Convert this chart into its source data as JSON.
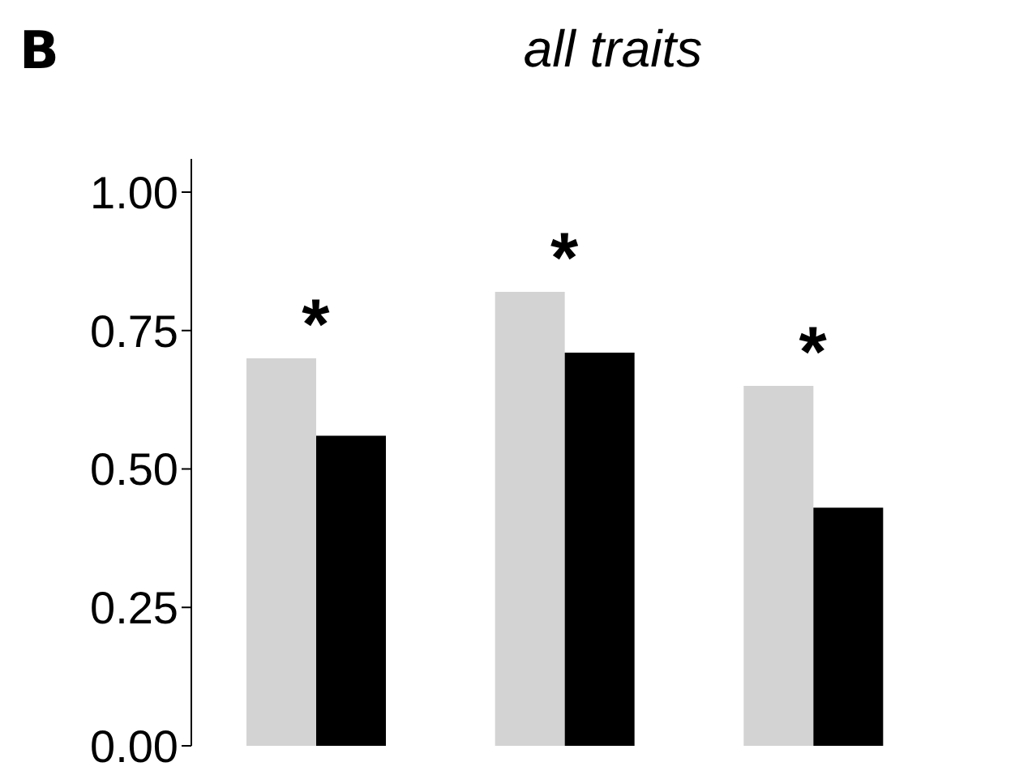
{
  "chart_data": {
    "type": "bar",
    "title": "all traits",
    "categories": [
      null,
      null,
      null
    ],
    "series": [
      {
        "color": "#d3d3d3",
        "values": [
          0.7,
          0.82,
          0.65
        ]
      },
      {
        "color": "#000000",
        "values": [
          0.56,
          0.71,
          0.43
        ]
      }
    ],
    "ylim": [
      0,
      1.06
    ],
    "yticks": [
      {
        "value": 0,
        "label": "0.00"
      },
      {
        "value": 0.25,
        "label": "0.25"
      },
      {
        "value": 0.5,
        "label": "0.50"
      },
      {
        "value": 0.75,
        "label": "0.75"
      },
      {
        "value": 1,
        "label": "1.00"
      }
    ],
    "tick_labels": "y",
    "grid": false,
    "legend": false,
    "annotations": [
      "B",
      "*",
      "*",
      "*"
    ]
  }
}
